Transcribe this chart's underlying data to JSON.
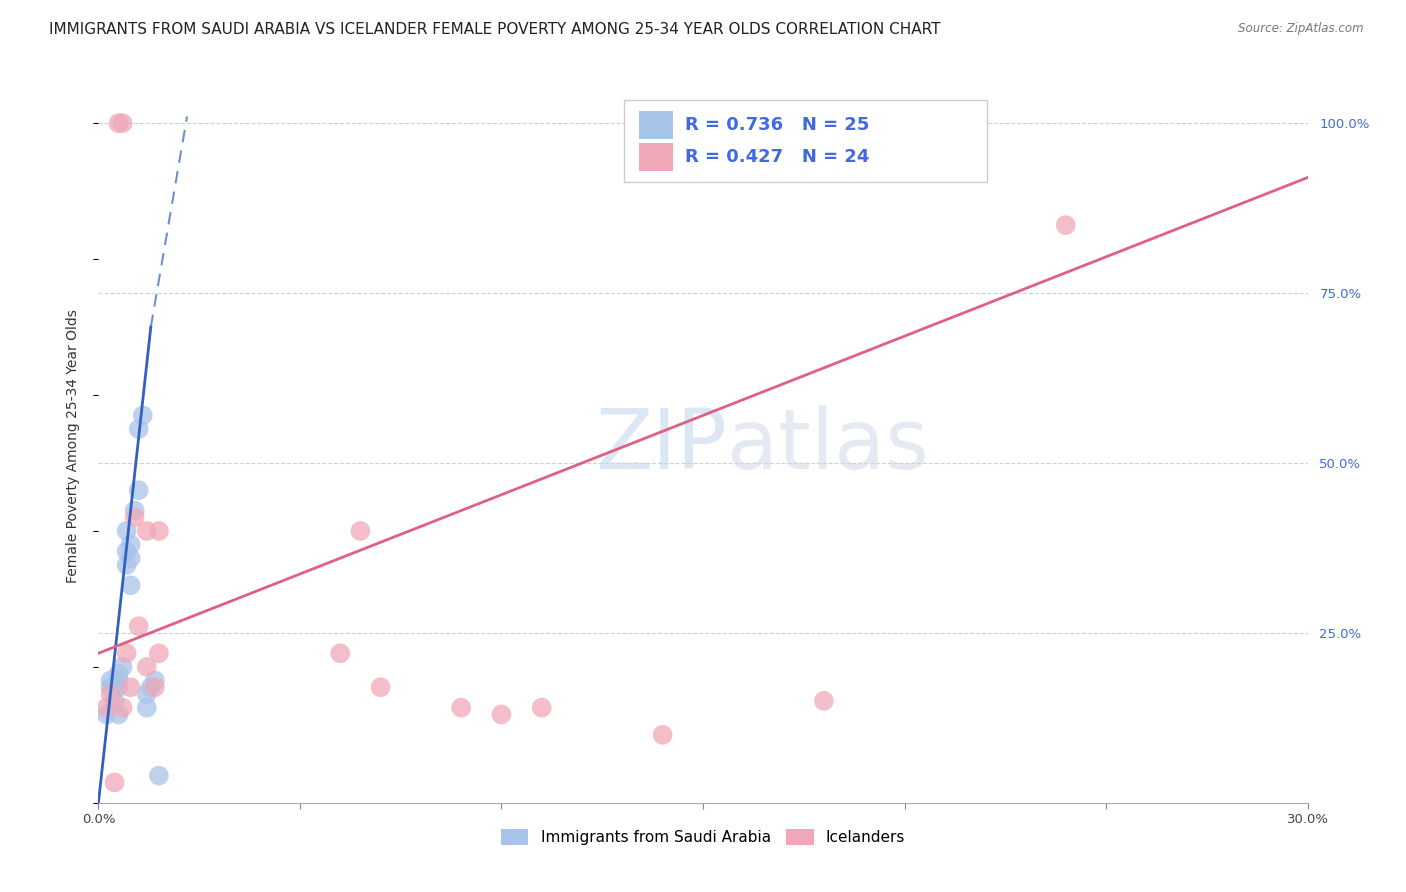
{
  "title": "IMMIGRANTS FROM SAUDI ARABIA VS ICELANDER FEMALE POVERTY AMONG 25-34 YEAR OLDS CORRELATION CHART",
  "source": "Source: ZipAtlas.com",
  "ylabel": "Female Poverty Among 25-34 Year Olds",
  "xlim": [
    0.0,
    0.3
  ],
  "ylim": [
    0.0,
    1.05
  ],
  "x_ticks": [
    0.0,
    0.05,
    0.1,
    0.15,
    0.2,
    0.25,
    0.3
  ],
  "x_tick_labels": [
    "0.0%",
    "",
    "",
    "",
    "",
    "",
    "30.0%"
  ],
  "y_ticks": [
    0.0,
    0.25,
    0.5,
    0.75,
    1.0
  ],
  "y_tick_labels_right": [
    "",
    "25.0%",
    "50.0%",
    "75.0%",
    "100.0%"
  ],
  "R_blue": 0.736,
  "N_blue": 25,
  "R_pink": 0.427,
  "N_pink": 24,
  "blue_color": "#a8c4e8",
  "pink_color": "#f0a8b8",
  "blue_line_color": "#3060c0",
  "pink_line_color": "#e06080",
  "legend_R_N_color": "#4169e1",
  "watermark": "ZIPatlas",
  "blue_scatter_x": [
    0.002,
    0.003,
    0.003,
    0.004,
    0.004,
    0.005,
    0.005,
    0.005,
    0.005,
    0.006,
    0.007,
    0.007,
    0.007,
    0.008,
    0.008,
    0.008,
    0.009,
    0.01,
    0.01,
    0.011,
    0.012,
    0.012,
    0.013,
    0.014,
    0.015
  ],
  "blue_scatter_y": [
    0.13,
    0.17,
    0.18,
    0.15,
    0.17,
    0.19,
    0.18,
    0.17,
    0.13,
    0.2,
    0.35,
    0.37,
    0.4,
    0.32,
    0.36,
    0.38,
    0.43,
    0.46,
    0.55,
    0.57,
    0.14,
    0.16,
    0.17,
    0.18,
    0.04
  ],
  "pink_scatter_x": [
    0.002,
    0.003,
    0.004,
    0.005,
    0.006,
    0.006,
    0.007,
    0.008,
    0.009,
    0.01,
    0.012,
    0.012,
    0.014,
    0.015,
    0.015,
    0.06,
    0.065,
    0.07,
    0.09,
    0.1,
    0.11,
    0.14,
    0.18,
    0.24
  ],
  "pink_scatter_y": [
    0.14,
    0.16,
    0.03,
    1.0,
    1.0,
    0.14,
    0.22,
    0.17,
    0.42,
    0.26,
    0.2,
    0.4,
    0.17,
    0.22,
    0.4,
    0.22,
    0.4,
    0.17,
    0.14,
    0.13,
    0.14,
    0.1,
    0.15,
    0.85
  ],
  "blue_solid_line_x": [
    0.0,
    0.013
  ],
  "blue_solid_line_y": [
    0.0,
    0.7
  ],
  "blue_dashed_line_x": [
    0.013,
    0.022
  ],
  "blue_dashed_line_y": [
    0.7,
    1.01
  ],
  "pink_line_x": [
    0.0,
    0.3
  ],
  "pink_line_y": [
    0.22,
    0.92
  ],
  "background_color": "#ffffff",
  "grid_color": "#d0d0d0",
  "title_fontsize": 11,
  "axis_label_fontsize": 10,
  "tick_fontsize": 9.5
}
